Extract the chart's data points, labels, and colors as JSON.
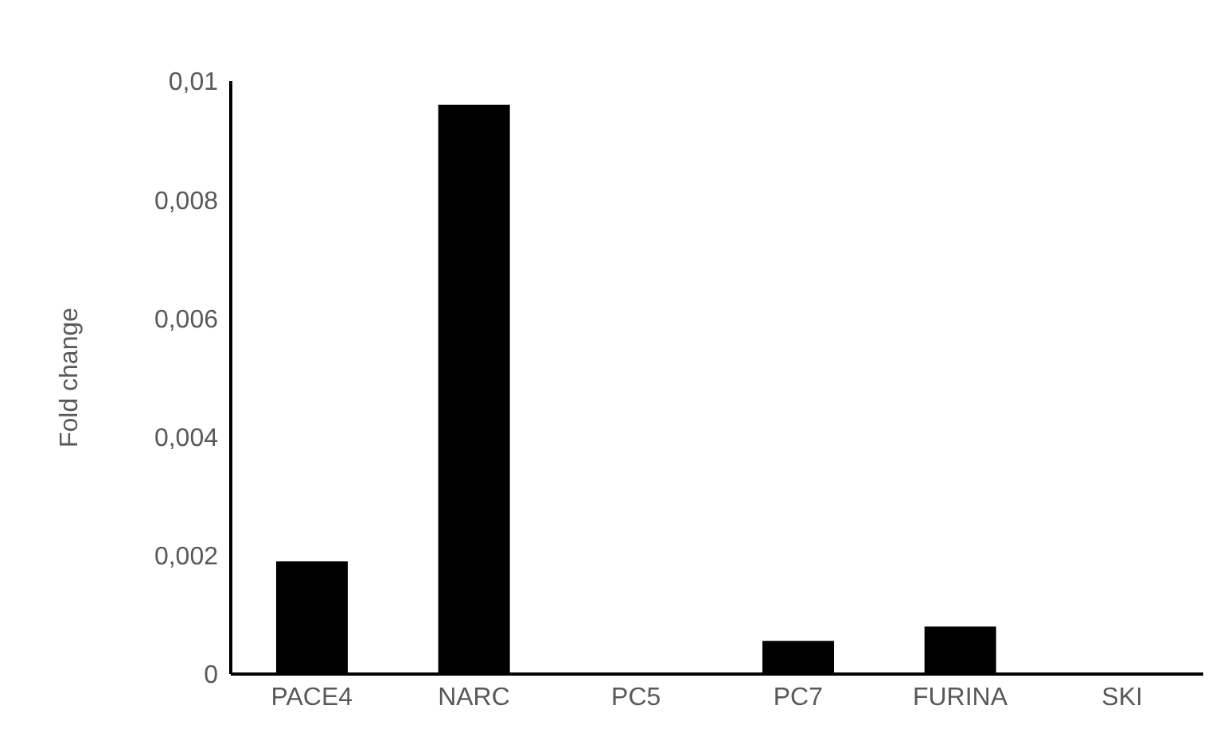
{
  "chart_data": {
    "type": "bar",
    "ylabel": "Fold change",
    "categories": [
      "PACE4",
      "NARC",
      "PC5",
      "PC7",
      "FURINA",
      "SKI"
    ],
    "values": [
      0.0019,
      0.0096,
      0,
      0.00056,
      0.0008,
      0
    ],
    "color": "#000000",
    "ylim": [
      0,
      0.01
    ],
    "yticks": [
      {
        "value": 0,
        "label": "0"
      },
      {
        "value": 0.002,
        "label": "0,002"
      },
      {
        "value": 0.004,
        "label": "0,004"
      },
      {
        "value": 0.006,
        "label": "0,006"
      },
      {
        "value": 0.008,
        "label": "0,008"
      },
      {
        "value": 0.01,
        "label": "0,01"
      }
    ],
    "grid": false
  }
}
